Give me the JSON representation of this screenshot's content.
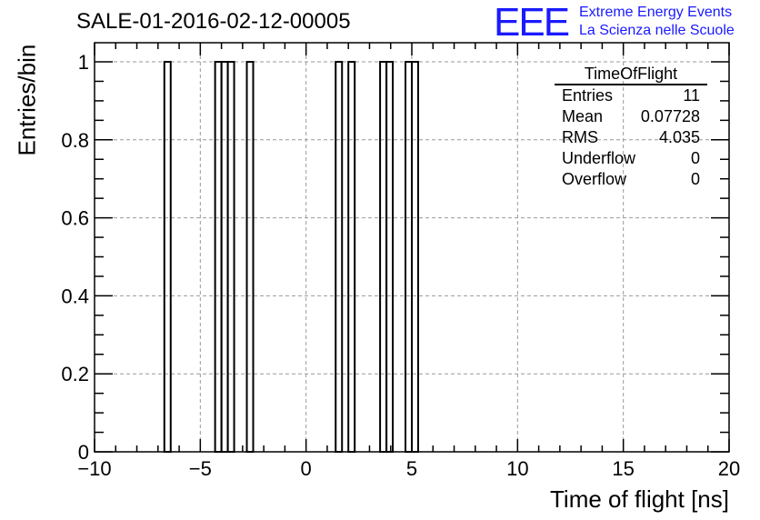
{
  "chart_data": {
    "type": "bar",
    "title": "SALE-01-2016-02-12-00005",
    "xlabel": "Time of flight [ns]",
    "ylabel": "Entries/bin",
    "xlim": [
      -10,
      20
    ],
    "ylim": [
      0,
      1.05
    ],
    "grid": true,
    "bin_width": 0.3,
    "bins": [
      {
        "x": -6.7,
        "value": 1
      },
      {
        "x": -4.3,
        "value": 1
      },
      {
        "x": -4.0,
        "value": 1
      },
      {
        "x": -3.7,
        "value": 1
      },
      {
        "x": -2.8,
        "value": 1
      },
      {
        "x": 1.4,
        "value": 1
      },
      {
        "x": 2.0,
        "value": 1
      },
      {
        "x": 3.5,
        "value": 1
      },
      {
        "x": 3.8,
        "value": 1
      },
      {
        "x": 4.7,
        "value": 1
      },
      {
        "x": 5.0,
        "value": 1
      }
    ],
    "xticks": [
      {
        "v": -10,
        "label": "−10"
      },
      {
        "v": -5,
        "label": "−5"
      },
      {
        "v": 0,
        "label": "0"
      },
      {
        "v": 5,
        "label": "5"
      },
      {
        "v": 10,
        "label": "10"
      },
      {
        "v": 15,
        "label": "15"
      },
      {
        "v": 20,
        "label": "20"
      }
    ],
    "yticks": [
      {
        "v": 0,
        "label": "0"
      },
      {
        "v": 0.2,
        "label": "0.2"
      },
      {
        "v": 0.4,
        "label": "0.4"
      },
      {
        "v": 0.6,
        "label": "0.6"
      },
      {
        "v": 0.8,
        "label": "0.8"
      },
      {
        "v": 1,
        "label": "1"
      }
    ],
    "stats": {
      "name": "TimeOfFlight",
      "rows": [
        [
          "Entries",
          "11"
        ],
        [
          "Mean",
          "0.07728"
        ],
        [
          "RMS",
          "4.035"
        ],
        [
          "Underflow",
          "0"
        ],
        [
          "Overflow",
          "0"
        ]
      ]
    }
  },
  "logo": {
    "mark": "EEE",
    "line1": "Extreme Energy Events",
    "line2": "La Scienza nelle Scuole"
  }
}
